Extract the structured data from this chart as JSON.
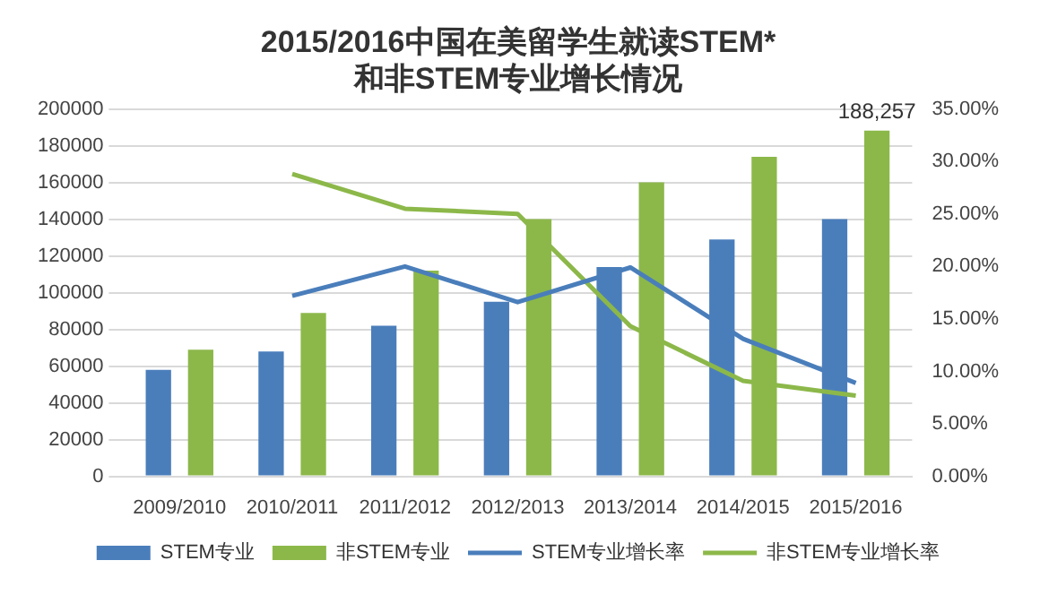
{
  "chart_data": {
    "type": "bar",
    "title": "2015/2016中国在美留学生就读STEM*",
    "subtitle": "和非STEM专业增长情况",
    "categories": [
      "2009/2010",
      "2010/2011",
      "2011/2012",
      "2012/2013",
      "2013/2014",
      "2014/2015",
      "2015/2016"
    ],
    "series": [
      {
        "name": "STEM专业",
        "color": "#4a7ebb",
        "values": [
          58000,
          68000,
          82000,
          95000,
          114000,
          129000,
          140000
        ]
      },
      {
        "name": "非STEM专业",
        "color": "#8cb84a",
        "values": [
          69000,
          89000,
          112000,
          140000,
          160000,
          174000,
          188257
        ],
        "value_labels": [
          null,
          null,
          null,
          null,
          null,
          null,
          "188,257"
        ]
      },
      {
        "name": "STEM专业增长率",
        "type": "line",
        "axis": "y2",
        "color": "#4a7ebb",
        "values": [
          null,
          17.2,
          20.0,
          16.6,
          19.9,
          13.1,
          8.9
        ]
      },
      {
        "name": "非STEM专业增长率",
        "type": "line",
        "axis": "y2",
        "color": "#8cb84a",
        "values": [
          null,
          28.8,
          25.5,
          25.0,
          14.3,
          9.1,
          7.7
        ]
      }
    ],
    "ylim": [
      0,
      200000
    ],
    "yticks": [
      0,
      20000,
      40000,
      60000,
      80000,
      100000,
      120000,
      140000,
      160000,
      180000,
      200000
    ],
    "y2lim": [
      0,
      35
    ],
    "y2ticks": [
      {
        "value": 0,
        "label": "0.00%"
      },
      {
        "value": 5,
        "label": "5.00%"
      },
      {
        "value": 10,
        "label": "10.00%"
      },
      {
        "value": 15,
        "label": "15.00%"
      },
      {
        "value": 20,
        "label": "20.00%"
      },
      {
        "value": 25,
        "label": "25.00%"
      },
      {
        "value": 30,
        "label": "30.00%"
      },
      {
        "value": 35,
        "label": "35.00%"
      }
    ],
    "grid": "y",
    "legend": "bottom",
    "marker": "none"
  }
}
